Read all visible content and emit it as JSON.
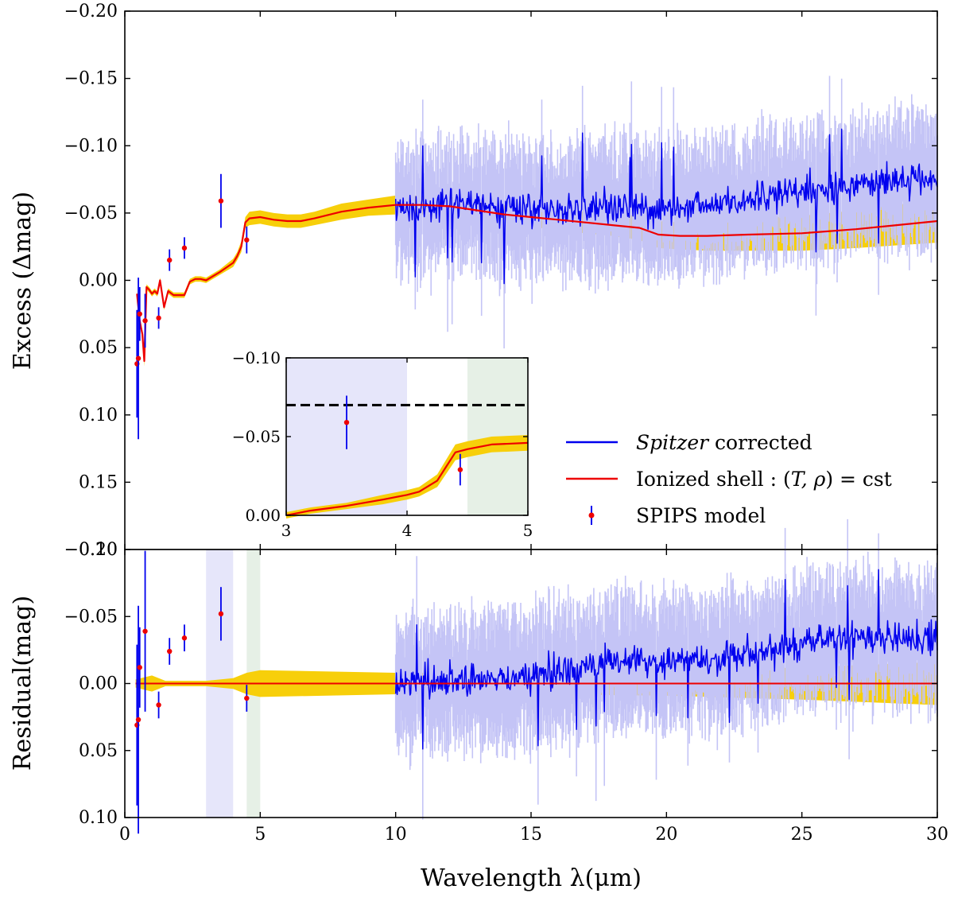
{
  "chart_data": [
    {
      "type": "line",
      "panel": "main",
      "ylabel": "Excess (Δmag)",
      "xlim": [
        0,
        30
      ],
      "ylim": [
        0.2,
        -0.2
      ],
      "y_inverted": true,
      "xticks": [
        0,
        5,
        10,
        15,
        20,
        25,
        30
      ],
      "xtick_labels": [
        "0",
        "5",
        "10",
        "15",
        "20",
        "25",
        "30"
      ],
      "yticks": [
        -0.2,
        -0.15,
        -0.1,
        -0.05,
        0.0,
        0.05,
        0.1,
        0.15,
        0.2
      ],
      "ytick_labels": [
        "−0.20",
        "−0.15",
        "−0.10",
        "−0.05",
        "0.00",
        "0.05",
        "0.10",
        "0.15",
        "0.20"
      ],
      "legend": {
        "placement": "center-right",
        "entries": [
          {
            "style": "line",
            "color": "#0000ee",
            "pre": "",
            "italic": "Spitzer",
            "post": " corrected"
          },
          {
            "style": "line",
            "color": "#ee0000",
            "pre": "Ionized shell : (",
            "italic": "T, ρ",
            "post": ") = cst"
          },
          {
            "style": "errorbar",
            "color": "#ee0000",
            "pre": "SPIPS model",
            "italic": "",
            "post": ""
          }
        ]
      },
      "series": [
        {
          "name": "Ionized shell : (T, ρ) = cst",
          "color": "#ee0000",
          "x": [
            0.45,
            0.55,
            0.65,
            0.72,
            0.8,
            0.9,
            1.0,
            1.1,
            1.2,
            1.3,
            1.45,
            1.6,
            1.8,
            2.0,
            2.2,
            2.4,
            2.6,
            2.8,
            3.0,
            3.5,
            4.0,
            4.15,
            4.3,
            4.45,
            4.6,
            5.0,
            5.5,
            6.0,
            6.5,
            7.0,
            8.0,
            9.0,
            10.0,
            11.0,
            12.0,
            13.0,
            14.0,
            15.0,
            16.0,
            17.0,
            18.0,
            19.0,
            19.7,
            20.5,
            21.5,
            23.0,
            25.0,
            27.0,
            28.5,
            30.0
          ],
          "y": [
            0.01,
            0.03,
            0.04,
            0.06,
            0.005,
            0.007,
            0.01,
            0.008,
            0.01,
            0.0,
            0.02,
            0.008,
            0.011,
            0.011,
            0.011,
            0.001,
            -0.001,
            -0.001,
            0.0,
            -0.006,
            -0.013,
            -0.018,
            -0.025,
            -0.043,
            -0.046,
            -0.047,
            -0.045,
            -0.044,
            -0.044,
            -0.046,
            -0.051,
            -0.054,
            -0.056,
            -0.056,
            -0.055,
            -0.052,
            -0.049,
            -0.047,
            -0.045,
            -0.043,
            -0.041,
            -0.039,
            -0.034,
            -0.033,
            -0.033,
            -0.034,
            -0.035,
            -0.038,
            -0.041,
            -0.044
          ],
          "band_halfwidth": [
            0.002,
            0.003,
            0.003,
            0.004,
            0.002,
            0.002,
            0.002,
            0.002,
            0.002,
            0.002,
            0.002,
            0.002,
            0.002,
            0.002,
            0.002,
            0.002,
            0.002,
            0.002,
            0.002,
            0.002,
            0.003,
            0.003,
            0.004,
            0.004,
            0.005,
            0.005,
            0.005,
            0.005,
            0.005,
            0.005,
            0.006,
            0.006,
            0.007,
            0.007,
            0.007,
            0.007,
            0.007,
            0.007,
            0.008,
            0.008,
            0.008,
            0.009,
            0.01,
            0.01,
            0.011,
            0.012,
            0.013,
            0.014,
            0.015,
            0.016
          ]
        },
        {
          "name": "Spitzer corrected",
          "color": "#0000ee",
          "x_range": [
            10.0,
            30.0
          ],
          "trend_x": [
            10.0,
            12.0,
            14.0,
            16.0,
            18.0,
            20.0,
            22.0,
            24.0,
            26.0,
            28.0,
            30.0
          ],
          "trend_y": [
            -0.053,
            -0.056,
            -0.054,
            -0.051,
            -0.054,
            -0.052,
            -0.058,
            -0.064,
            -0.068,
            -0.073,
            -0.075
          ],
          "noise_amplitude": 0.02
        }
      ],
      "points": {
        "name": "SPIPS model",
        "x": [
          0.45,
          0.5,
          0.55,
          0.75,
          1.25,
          1.65,
          2.2,
          3.55,
          4.5
        ],
        "y": [
          0.062,
          0.058,
          0.025,
          0.03,
          0.028,
          -0.015,
          -0.024,
          -0.059,
          -0.03
        ],
        "err": [
          0.04,
          0.06,
          0.02,
          0.02,
          0.008,
          0.008,
          0.008,
          0.02,
          0.01
        ]
      }
    },
    {
      "type": "line",
      "panel": "inset",
      "xlim": [
        3,
        5
      ],
      "ylim": [
        0.0,
        -0.1
      ],
      "y_inverted": true,
      "xticks": [
        3,
        4,
        5
      ],
      "xtick_labels": [
        "3",
        "4",
        "5"
      ],
      "yticks": [
        -0.1,
        -0.05,
        0.0
      ],
      "ytick_labels": [
        "−0.10",
        "−0.05",
        "0.00"
      ],
      "shaded_regions": [
        {
          "x": [
            3.0,
            4.0
          ],
          "color": "#e6e6fa"
        },
        {
          "x": [
            4.5,
            5.0
          ],
          "color": "#e6f0e6"
        }
      ],
      "hline": {
        "y": -0.07,
        "style": "dashed",
        "color": "#000000"
      },
      "series": [
        {
          "name": "Ionized shell : (T, ρ) = cst",
          "color": "#ee0000",
          "x": [
            3.0,
            3.2,
            3.5,
            3.8,
            4.0,
            4.1,
            4.25,
            4.4,
            4.5,
            4.7,
            5.0
          ],
          "y": [
            0.0,
            -0.003,
            -0.006,
            -0.01,
            -0.013,
            -0.015,
            -0.022,
            -0.04,
            -0.042,
            -0.045,
            -0.046
          ],
          "band_halfwidth": [
            0.002,
            0.002,
            0.002,
            0.003,
            0.003,
            0.003,
            0.004,
            0.005,
            0.005,
            0.005,
            0.005
          ]
        }
      ],
      "points": {
        "name": "SPIPS model",
        "x": [
          3.5,
          4.44
        ],
        "y": [
          -0.059,
          -0.029
        ],
        "err": [
          0.017,
          0.01
        ]
      }
    },
    {
      "type": "line",
      "panel": "residual",
      "xlabel": "Wavelength λ(μm)",
      "ylabel": "Residual(mag)",
      "xlim": [
        0,
        30
      ],
      "ylim": [
        0.1,
        -0.1
      ],
      "y_inverted": true,
      "xticks": [
        0,
        5,
        10,
        15,
        20,
        25,
        30
      ],
      "xtick_labels": [
        "0",
        "5",
        "10",
        "15",
        "20",
        "25",
        "30"
      ],
      "yticks": [
        -0.1,
        -0.05,
        0.0,
        0.05,
        0.1
      ],
      "ytick_labels": [
        "−0.10",
        "−0.05",
        "0.00",
        "0.05",
        "0.10"
      ],
      "shaded_regions": [
        {
          "x": [
            3.0,
            4.0
          ],
          "color": "#e6e6fa"
        },
        {
          "x": [
            4.5,
            5.0
          ],
          "color": "#e6f0e6"
        }
      ],
      "series": [
        {
          "name": "Ionized shell : (T, ρ) = cst",
          "color": "#ee0000",
          "x": [
            0.4,
            30.0
          ],
          "y": [
            0.0,
            0.0
          ],
          "band_x": [
            0.4,
            1.0,
            1.5,
            2.0,
            3.0,
            4.0,
            4.5,
            5.0,
            10.0,
            15.0,
            20.0,
            25.0,
            30.0
          ],
          "band_halfwidth": [
            0.003,
            0.006,
            0.002,
            0.002,
            0.002,
            0.004,
            0.008,
            0.01,
            0.008,
            0.008,
            0.009,
            0.012,
            0.016
          ]
        },
        {
          "name": "Spitzer corrected",
          "color": "#0000ee",
          "x_range": [
            10.0,
            30.0
          ],
          "trend_x": [
            10.0,
            14.0,
            18.0,
            20.0,
            22.0,
            26.0,
            30.0
          ],
          "trend_y": [
            0.0,
            -0.003,
            -0.015,
            -0.015,
            -0.02,
            -0.033,
            -0.035
          ],
          "noise_amplitude": 0.02
        }
      ],
      "points": {
        "name": "SPIPS model",
        "x": [
          0.45,
          0.5,
          0.55,
          0.75,
          1.25,
          1.65,
          2.2,
          3.55,
          4.5
        ],
        "y": [
          0.031,
          0.027,
          -0.012,
          -0.039,
          0.016,
          -0.024,
          -0.034,
          -0.052,
          0.011
        ],
        "err": [
          0.06,
          0.085,
          0.03,
          0.06,
          0.01,
          0.01,
          0.01,
          0.02,
          0.01
        ]
      }
    }
  ]
}
